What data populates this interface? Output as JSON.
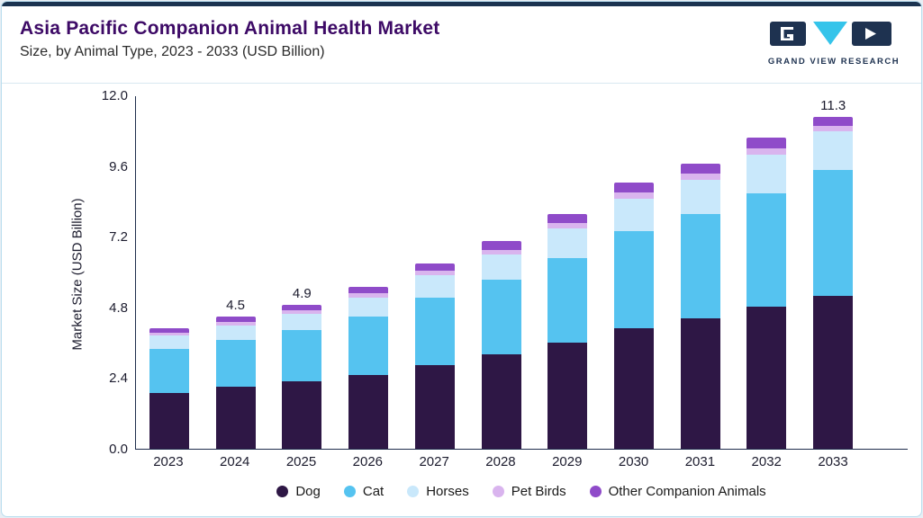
{
  "header": {
    "title": "Asia Pacific Companion Animal Health Market",
    "subtitle": "Size, by Animal Type, 2023 - 2033 (USD Billion)",
    "logo_text": "GRAND VIEW RESEARCH"
  },
  "chart_data": {
    "type": "bar",
    "stacked": true,
    "title": "Asia Pacific Companion Animal Health Market Size, by Animal Type, 2023 - 2033 (USD Billion)",
    "categories": [
      "2023",
      "2024",
      "2025",
      "2026",
      "2027",
      "2028",
      "2029",
      "2030",
      "2031",
      "2032",
      "2033"
    ],
    "series": [
      {
        "name": "Dog",
        "color": "#2e1745",
        "values": [
          1.9,
          2.1,
          2.3,
          2.5,
          2.85,
          3.2,
          3.6,
          4.1,
          4.45,
          4.85,
          5.2
        ]
      },
      {
        "name": "Cat",
        "color": "#55c3f0",
        "values": [
          1.5,
          1.6,
          1.75,
          2.0,
          2.3,
          2.55,
          2.9,
          3.3,
          3.55,
          3.85,
          4.3
        ]
      },
      {
        "name": "Horses",
        "color": "#c9e8fb",
        "values": [
          0.45,
          0.5,
          0.55,
          0.65,
          0.75,
          0.85,
          1.0,
          1.1,
          1.15,
          1.3,
          1.3
        ]
      },
      {
        "name": "Pet Birds",
        "color": "#d9b4ee",
        "values": [
          0.1,
          0.12,
          0.12,
          0.15,
          0.15,
          0.18,
          0.2,
          0.22,
          0.22,
          0.23,
          0.2
        ]
      },
      {
        "name": "Other Companion Animals",
        "color": "#8f4bc9",
        "values": [
          0.15,
          0.18,
          0.18,
          0.2,
          0.25,
          0.28,
          0.3,
          0.33,
          0.33,
          0.35,
          0.3
        ]
      }
    ],
    "totals": [
      4.1,
      4.5,
      4.9,
      5.5,
      6.3,
      7.06,
      8.0,
      9.05,
      9.7,
      10.58,
      11.3
    ],
    "bar_labels": [
      "",
      "4.5",
      "4.9",
      "",
      "",
      "",
      "",
      "",
      "",
      "",
      "11.3"
    ],
    "ylabel": "Market Size (USD Billion)",
    "xlabel": "",
    "ylim": [
      0,
      12.0
    ],
    "yticks": [
      0.0,
      2.4,
      4.8,
      7.2,
      9.6,
      12.0
    ],
    "grid": false,
    "legend_position": "bottom"
  },
  "colors": {
    "accent_stripe": "#1b3350",
    "title": "#3d0a66",
    "axis": "#1f2d4c",
    "logo_navy": "#1e3250",
    "logo_cyan": "#35c4ea"
  }
}
